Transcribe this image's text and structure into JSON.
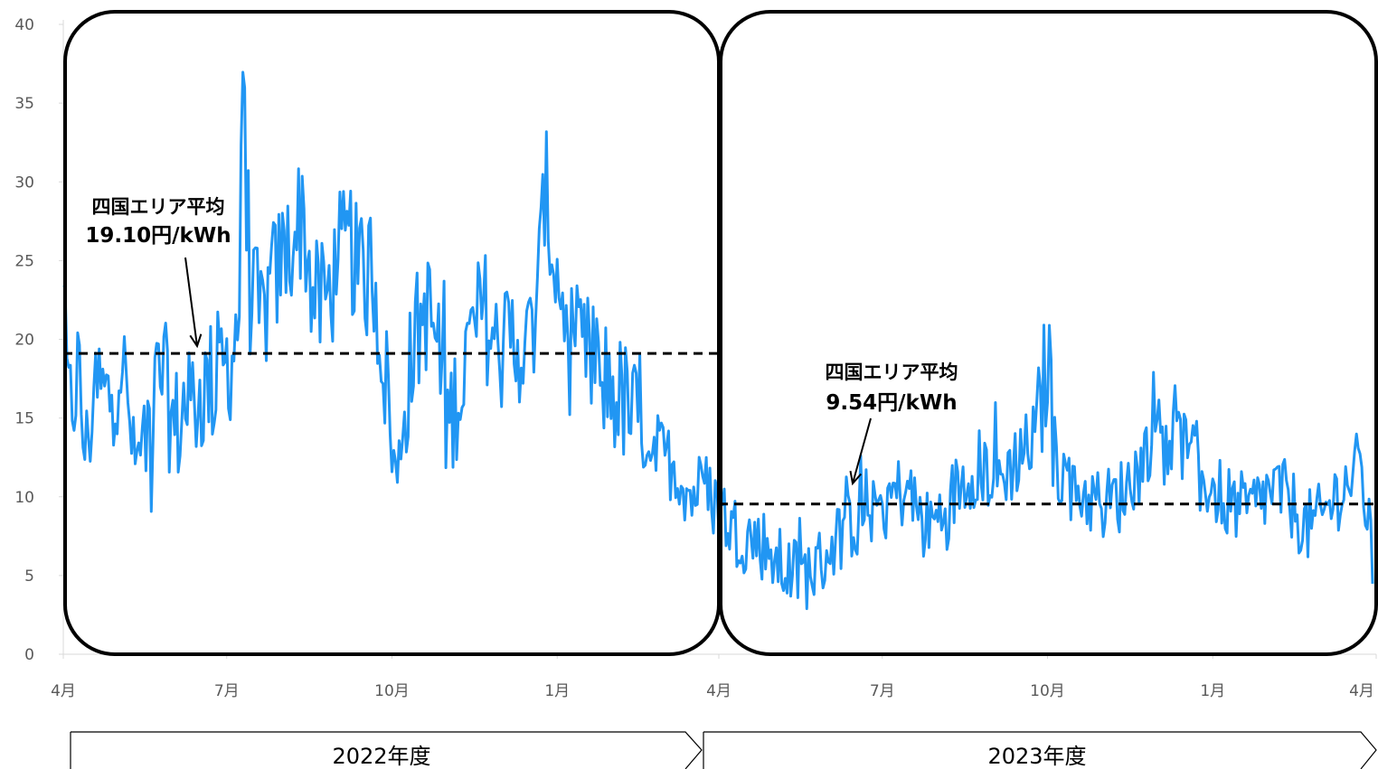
{
  "chart_data": {
    "type": "line",
    "title": "",
    "xlabel": "",
    "ylabel": "",
    "ylim": [
      0,
      40
    ],
    "y_ticks": [
      0,
      5,
      10,
      15,
      20,
      25,
      30,
      35,
      40
    ],
    "x_range_days": [
      0,
      731
    ],
    "x_ticks": [
      {
        "label": "4月",
        "day": 0
      },
      {
        "label": "7月",
        "day": 91
      },
      {
        "label": "10月",
        "day": 183
      },
      {
        "label": "1月",
        "day": 275
      },
      {
        "label": "4月",
        "day": 365
      },
      {
        "label": "7月",
        "day": 456
      },
      {
        "label": "10月",
        "day": 548
      },
      {
        "label": "1月",
        "day": 640
      },
      {
        "label": "4月",
        "day": 731
      }
    ],
    "series_color": "#2196F3",
    "series": [
      {
        "anchors_day": [
          0,
          3,
          8,
          12,
          18,
          25,
          32,
          40,
          48,
          55,
          62,
          68,
          72,
          80,
          88,
          94,
          98,
          100,
          104,
          110,
          118,
          126,
          133,
          140,
          148,
          154,
          160,
          166,
          172,
          177,
          181,
          184,
          186,
          190,
          196,
          202,
          208,
          212,
          216,
          222,
          228,
          234,
          242,
          248,
          254,
          258,
          262,
          266,
          268,
          272,
          278,
          284,
          290,
          297,
          304,
          312,
          322,
          330,
          340,
          350,
          356,
          360,
          365,
          372,
          380,
          390,
          400,
          410,
          420,
          428,
          436,
          444,
          452,
          460,
          470,
          480,
          490,
          500,
          510,
          520,
          528,
          536,
          542,
          546,
          548,
          550,
          553,
          560,
          570,
          580,
          588,
          594,
          600,
          606,
          612,
          620,
          630,
          640,
          650,
          660,
          668,
          676,
          684,
          692,
          700,
          708,
          716,
          722,
          726,
          729,
          731
        ],
        "anchors_val": [
          22,
          15,
          18,
          13,
          17,
          16,
          19,
          12,
          15,
          18,
          14,
          16,
          16,
          17,
          18,
          19,
          22,
          36,
          23,
          21,
          24,
          26,
          28,
          22,
          23,
          25,
          26,
          23,
          25,
          20,
          16,
          12,
          11,
          16,
          20,
          22,
          20,
          15,
          15,
          18,
          20,
          22,
          19,
          20,
          20,
          19,
          21,
          25,
          30,
          26,
          22,
          18,
          19,
          18,
          17,
          16,
          14,
          13,
          12,
          10,
          11,
          10,
          9.5,
          8,
          7.5,
          7,
          5.5,
          5,
          5.5,
          7,
          8,
          9,
          9.5,
          10,
          10.5,
          8,
          9,
          11,
          12,
          11,
          12,
          13,
          14,
          17,
          19,
          16,
          12,
          11,
          10,
          9.5,
          10,
          11,
          12,
          14,
          15,
          14,
          12,
          10.5,
          9.5,
          9,
          10,
          10.5,
          9.5,
          8,
          8.5,
          10,
          11,
          12,
          9,
          5
        ],
        "noise_amplitude": 3.0
      }
    ],
    "averages": [
      {
        "label_line1": "四国エリア平均",
        "label_line2": "19.10円/kWh",
        "value": 19.1,
        "from_day": 0,
        "to_day": 365
      },
      {
        "label_line1": "四国エリア平均",
        "label_line2": "9.54円/kWh",
        "value": 9.54,
        "from_day": 365,
        "to_day": 731
      }
    ],
    "fiscal_years": [
      {
        "label": "2022年度",
        "from_day": 0,
        "to_day": 365
      },
      {
        "label": "2023年度",
        "from_day": 365,
        "to_day": 731
      }
    ]
  }
}
